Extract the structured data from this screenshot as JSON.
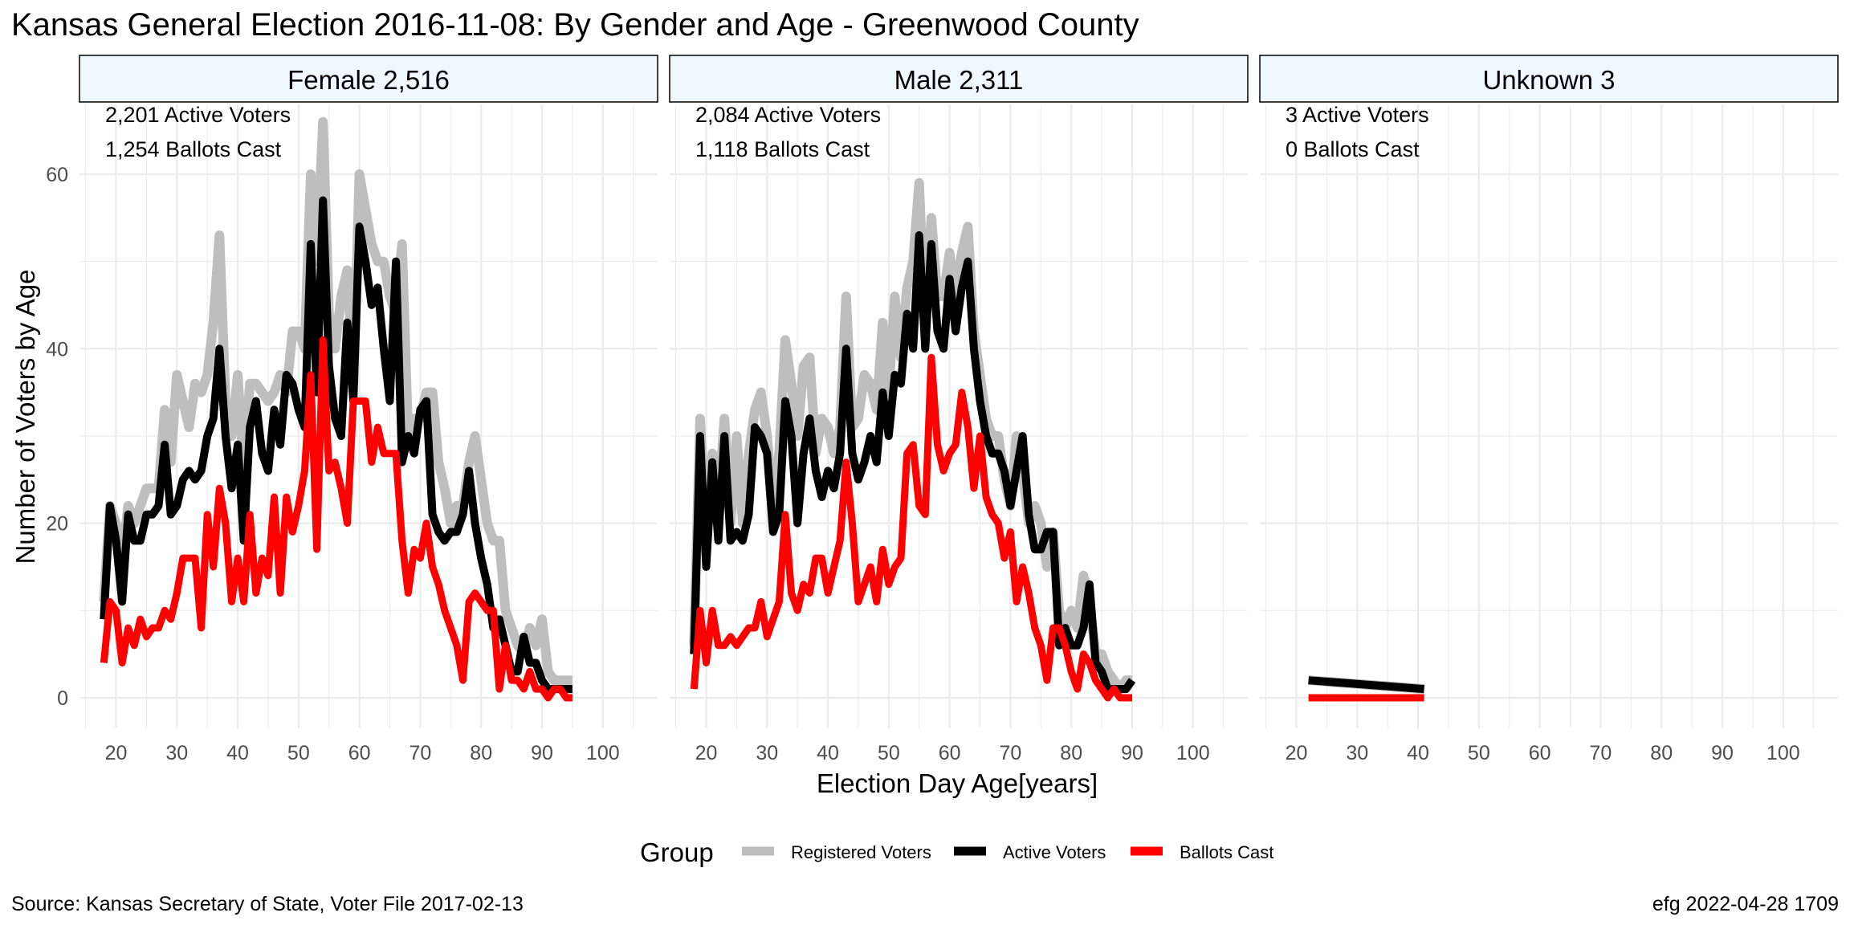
{
  "title": "Kansas General Election 2016-11-08:  By Gender and Age - Greenwood County",
  "xlabel": "Election Day Age[years]",
  "ylabel": "Number of Voters by Age",
  "legend": {
    "title": "Group",
    "items": [
      {
        "label": "Registered Voters",
        "color": "#bebebe"
      },
      {
        "label": "Active Voters",
        "color": "#000000"
      },
      {
        "label": "Ballots Cast",
        "color": "#ff0000"
      }
    ]
  },
  "source": "Source:  Kansas Secretary of State, Voter File  2017-02-13",
  "stamp": "efg 2022-04-28 1709",
  "colors": {
    "strip_bg": "#f0f8ff",
    "grid": "#ebebeb",
    "registered": "#bebebe",
    "active": "#000000",
    "ballots": "#ff0000"
  },
  "chart_data": {
    "type": "line",
    "x_ticks": [
      20,
      30,
      40,
      50,
      60,
      70,
      80,
      90,
      100
    ],
    "y_ticks": [
      0,
      20,
      40,
      60
    ],
    "xlim": [
      14,
      109
    ],
    "ylim": [
      -3.5,
      68
    ],
    "panels": [
      {
        "label": "Female 2,516",
        "annotations": [
          "2,201 Active Voters",
          "1,254 Ballots Cast"
        ],
        "x_start": 18,
        "series": [
          {
            "name": "Registered Voters",
            "values": [
              11,
              22,
              20,
              16,
              22,
              20,
              22,
              24,
              24,
              24,
              33,
              27,
              37,
              34,
              31,
              36,
              35,
              37,
              43,
              53,
              34,
              30,
              37,
              26,
              36,
              36,
              35,
              34,
              35,
              37,
              35,
              42,
              42,
              40,
              60,
              50,
              66,
              44,
              40,
              46,
              49,
              36,
              60,
              56,
              52,
              50,
              50,
              46,
              44,
              52,
              30,
              32,
              32,
              35,
              35,
              27,
              24,
              20,
              22,
              22,
              27,
              30,
              25,
              20,
              18,
              18,
              10,
              8,
              6,
              5,
              8,
              6,
              9,
              3,
              2,
              2,
              2,
              2
            ]
          },
          {
            "name": "Active Voters",
            "values": [
              9,
              22,
              18,
              11,
              21,
              18,
              18,
              21,
              21,
              22,
              29,
              21,
              22,
              25,
              26,
              25,
              26,
              30,
              32,
              40,
              30,
              24,
              29,
              18,
              31,
              34,
              28,
              26,
              33,
              29,
              37,
              36,
              33,
              31,
              52,
              35,
              57,
              38,
              32,
              30,
              43,
              34,
              54,
              50,
              45,
              47,
              40,
              34,
              50,
              27,
              30,
              28,
              33,
              34,
              21,
              19,
              18,
              19,
              19,
              21,
              26,
              20,
              16,
              13,
              8,
              9,
              6,
              3,
              3,
              7,
              4,
              4,
              2,
              1,
              1,
              1,
              1,
              1
            ]
          },
          {
            "name": "Ballots Cast",
            "values": [
              4,
              11,
              10,
              4,
              8,
              6,
              9,
              7,
              8,
              8,
              10,
              9,
              12,
              16,
              16,
              16,
              8,
              21,
              15,
              24,
              20,
              11,
              16,
              11,
              21,
              12,
              16,
              14,
              23,
              12,
              23,
              19,
              22,
              26,
              37,
              17,
              41,
              26,
              27,
              24,
              20,
              34,
              34,
              34,
              27,
              31,
              28,
              28,
              28,
              18,
              12,
              17,
              16,
              20,
              15,
              13,
              10,
              8,
              6,
              2,
              11,
              12,
              11,
              10,
              10,
              1,
              6,
              2,
              2,
              1,
              3,
              1,
              1,
              0,
              1,
              1,
              0,
              0
            ]
          }
        ]
      },
      {
        "label": "Male 2,311",
        "annotations": [
          "2,084 Active Voters",
          "1,118 Ballots Cast"
        ],
        "x_start": 18,
        "series": [
          {
            "name": "Registered Voters",
            "values": [
              6,
              32,
              18,
              28,
              22,
              32,
              20,
              30,
              20,
              28,
              33,
              35,
              30,
              22,
              28,
              41,
              36,
              30,
              38,
              39,
              28,
              32,
              31,
              28,
              31,
              46,
              31,
              32,
              37,
              36,
              33,
              43,
              35,
              46,
              39,
              47,
              50,
              59,
              42,
              55,
              46,
              46,
              51,
              46,
              51,
              54,
              42,
              37,
              32,
              30,
              30,
              25,
              22,
              30,
              26,
              20,
              22,
              20,
              15,
              19,
              10,
              8,
              10,
              8,
              14,
              11,
              5,
              5,
              3,
              2,
              1,
              2,
              2
            ]
          },
          {
            "name": "Active Voters",
            "values": [
              5,
              30,
              15,
              27,
              18,
              30,
              18,
              19,
              18,
              21,
              31,
              30,
              28,
              19,
              21,
              34,
              30,
              20,
              28,
              32,
              26,
              23,
              26,
              24,
              28,
              40,
              28,
              25,
              27,
              30,
              27,
              35,
              30,
              37,
              36,
              44,
              40,
              53,
              40,
              52,
              42,
              40,
              48,
              42,
              47,
              50,
              40,
              34,
              30,
              28,
              28,
              26,
              22,
              26,
              30,
              21,
              17,
              17,
              19,
              19,
              6,
              8,
              6,
              6,
              8,
              13,
              4,
              3,
              1,
              1,
              1,
              1,
              2
            ]
          },
          {
            "name": "Ballots Cast",
            "values": [
              1,
              10,
              4,
              10,
              6,
              6,
              7,
              6,
              7,
              8,
              8,
              11,
              7,
              9,
              11,
              21,
              12,
              10,
              13,
              12,
              16,
              16,
              12,
              15,
              18,
              27,
              20,
              11,
              13,
              15,
              11,
              17,
              13,
              15,
              16,
              28,
              29,
              22,
              21,
              39,
              29,
              26,
              28,
              29,
              35,
              31,
              24,
              30,
              23,
              21,
              20,
              16,
              19,
              11,
              15,
              12,
              8,
              6,
              2,
              8,
              8,
              6,
              3,
              1,
              5,
              4,
              2,
              1,
              0,
              1,
              0,
              0,
              0
            ]
          }
        ]
      },
      {
        "label": "Unknown 3",
        "annotations": [
          "3 Active Voters",
          "0 Ballots Cast"
        ],
        "x_start": 22,
        "series": [
          {
            "name": "Registered Voters",
            "values": [
              2,
              1
            ]
          },
          {
            "name": "Active Voters",
            "values": [
              2,
              1
            ]
          },
          {
            "name": "Ballots Cast",
            "values": [
              0,
              0
            ]
          }
        ],
        "x_values": [
          22,
          41
        ]
      }
    ]
  }
}
